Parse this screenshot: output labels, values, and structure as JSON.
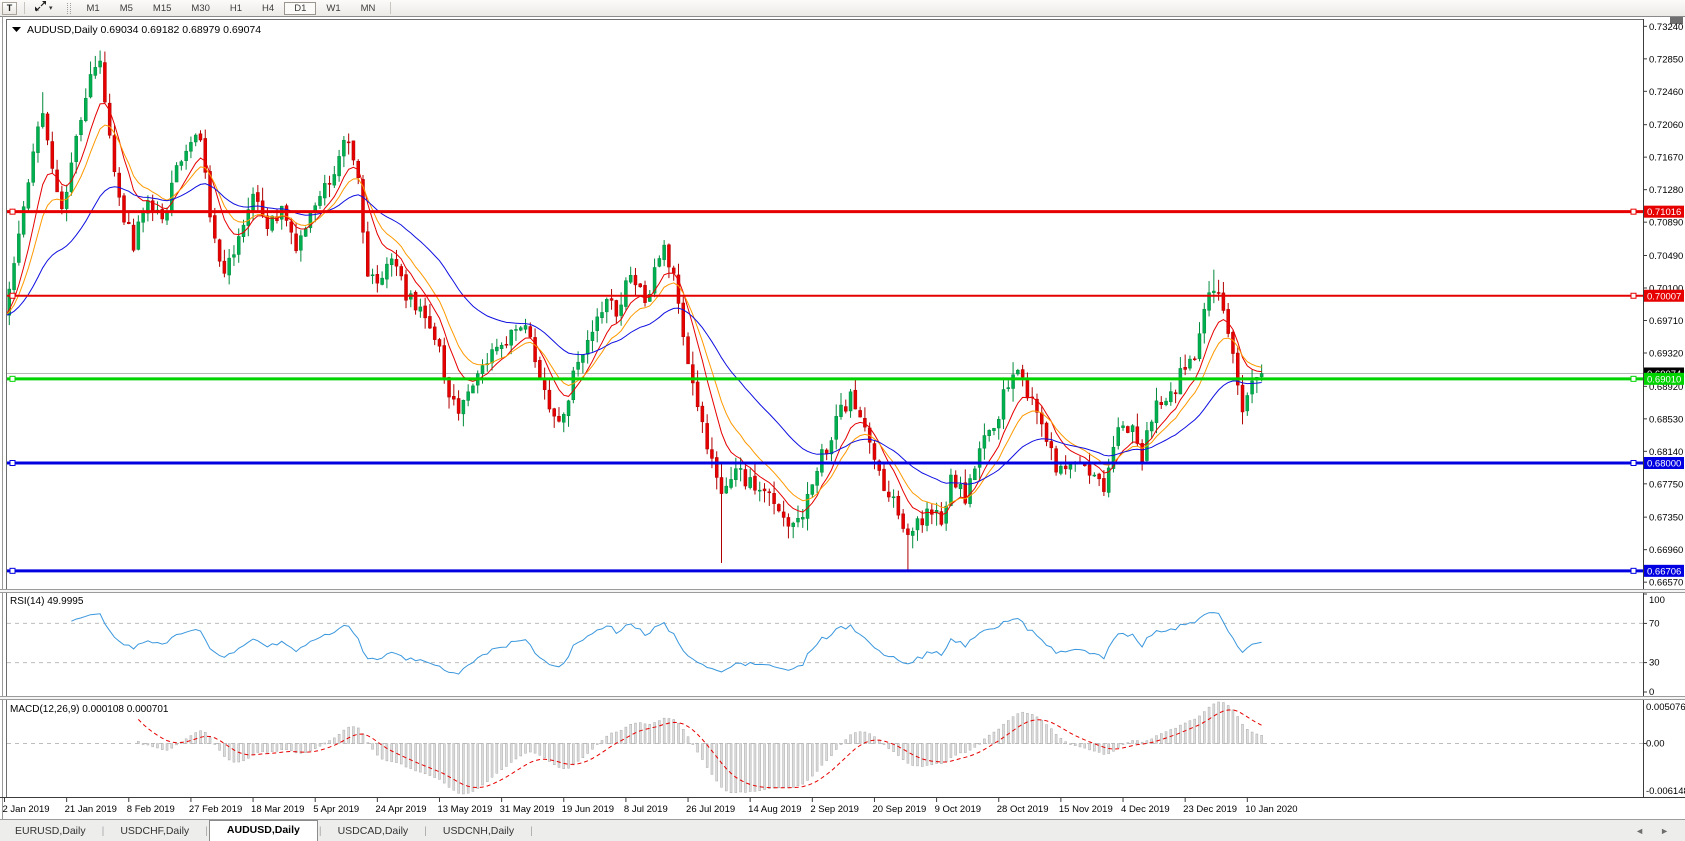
{
  "toolbar": {
    "text_tool": "T",
    "icons": [
      "text-tool-icon",
      "cursor-arrows-icon",
      "dropdown-caret-icon"
    ],
    "timeframes": [
      "M1",
      "M5",
      "M15",
      "M30",
      "H1",
      "H4",
      "D1",
      "W1",
      "MN"
    ],
    "active_timeframe": "D1"
  },
  "chart_header": {
    "symbol": "AUDUSD,Daily",
    "open": "0.69034",
    "high": "0.69182",
    "low": "0.68979",
    "close": "0.69074"
  },
  "price_axis": {
    "labels": [
      "0.73240",
      "0.72850",
      "0.72460",
      "0.72060",
      "0.71670",
      "0.71280",
      "0.70890",
      "0.70490",
      "0.70100",
      "0.69710",
      "0.69320",
      "0.68920",
      "0.68530",
      "0.68140",
      "0.67750",
      "0.67350",
      "0.66960",
      "0.66570"
    ],
    "current_price": {
      "value": 0.69074,
      "label": "0.69074",
      "box_color": "#000000",
      "text_color": "#ffffff",
      "line_color": "#b8b8b8"
    }
  },
  "levels": [
    {
      "price": 0.71016,
      "label": "0.71016",
      "color": "#e60000",
      "width": 3
    },
    {
      "price": 0.70007,
      "label": "0.70007",
      "color": "#e60000",
      "width": 2
    },
    {
      "price": 0.6901,
      "label": "0.69010",
      "color": "#00d400",
      "width": 3
    },
    {
      "price": 0.68,
      "label": "0.68000",
      "color": "#0000e0",
      "width": 3
    },
    {
      "price": 0.66706,
      "label": "0.66706",
      "color": "#0000e0",
      "width": 3
    }
  ],
  "rsi_panel": {
    "name": "RSI(14)",
    "value": "49.9995",
    "axis_labels": [
      "100",
      "70",
      "30",
      "0"
    ],
    "axis_values": [
      100,
      70,
      30,
      0
    ],
    "overbought": 70,
    "oversold": 30,
    "line_color": "#3a97dd"
  },
  "macd_panel": {
    "name": "MACD(12,26,9)",
    "value_main": "0.000108",
    "value_signal": "0.000701",
    "axis_top": "0.005076",
    "axis_zero": "0.00",
    "axis_bottom": "-0.006148",
    "histogram_fill": "#dcdcdc",
    "histogram_stroke": "#ababab",
    "signal_color": "#e60000"
  },
  "date_axis": {
    "labels": [
      "2 Jan 2019",
      "21 Jan 2019",
      "8 Feb 2019",
      "27 Feb 2019",
      "18 Mar 2019",
      "5 Apr 2019",
      "24 Apr 2019",
      "13 May 2019",
      "31 May 2019",
      "19 Jun 2019",
      "8 Jul 2019",
      "26 Jul 2019",
      "14 Aug 2019",
      "2 Sep 2019",
      "20 Sep 2019",
      "9 Oct 2019",
      "28 Oct 2019",
      "15 Nov 2019",
      "4 Dec 2019",
      "23 Dec 2019",
      "10 Jan 2020"
    ],
    "candles_per_label": 13
  },
  "bottom_tabs": {
    "items": [
      "EURUSD,Daily",
      "USDCHF,Daily",
      "AUDUSD,Daily",
      "USDCAD,Daily",
      "USDCNH,Daily"
    ],
    "active_index": 2,
    "arrows": [
      "tab-scroll-left-icon",
      "tab-scroll-right-icon"
    ]
  },
  "chart_data": {
    "type": "candlestick",
    "symbol": "AUDUSD",
    "timeframe": "Daily",
    "price_range": {
      "axis_top": 0.7324,
      "axis_bottom": 0.6657,
      "tick_step": 0.0039
    },
    "current_ohlc": {
      "open": 0.69034,
      "high": 0.69182,
      "low": 0.68979,
      "close": 0.69074
    },
    "candle_count": 264,
    "close_waypoints": [
      [
        0,
        0.6985
      ],
      [
        2,
        0.704
      ],
      [
        4,
        0.7105
      ],
      [
        6,
        0.718
      ],
      [
        8,
        0.723
      ],
      [
        10,
        0.715
      ],
      [
        12,
        0.711
      ],
      [
        14,
        0.716
      ],
      [
        16,
        0.722
      ],
      [
        18,
        0.726
      ],
      [
        20,
        0.729
      ],
      [
        21,
        0.724
      ],
      [
        23,
        0.715
      ],
      [
        25,
        0.7095
      ],
      [
        27,
        0.7065
      ],
      [
        30,
        0.7125
      ],
      [
        33,
        0.7085
      ],
      [
        36,
        0.7155
      ],
      [
        39,
        0.718
      ],
      [
        41,
        0.7195
      ],
      [
        43,
        0.7095
      ],
      [
        46,
        0.703
      ],
      [
        49,
        0.707
      ],
      [
        52,
        0.712
      ],
      [
        55,
        0.7085
      ],
      [
        58,
        0.7105
      ],
      [
        61,
        0.706
      ],
      [
        64,
        0.7095
      ],
      [
        67,
        0.7125
      ],
      [
        70,
        0.7165
      ],
      [
        72,
        0.719
      ],
      [
        74,
        0.7135
      ],
      [
        76,
        0.7025
      ],
      [
        78,
        0.701
      ],
      [
        81,
        0.7045
      ],
      [
        84,
        0.7005
      ],
      [
        87,
        0.699
      ],
      [
        89,
        0.696
      ],
      [
        91,
        0.6935
      ],
      [
        93,
        0.688
      ],
      [
        95,
        0.6862
      ],
      [
        97,
        0.6885
      ],
      [
        100,
        0.6915
      ],
      [
        104,
        0.6932
      ],
      [
        107,
        0.6968
      ],
      [
        110,
        0.6955
      ],
      [
        113,
        0.6885
      ],
      [
        116,
        0.6845
      ],
      [
        118,
        0.688
      ],
      [
        120,
        0.6925
      ],
      [
        123,
        0.6958
      ],
      [
        126,
        0.7005
      ],
      [
        128,
        0.6975
      ],
      [
        131,
        0.703
      ],
      [
        134,
        0.6992
      ],
      [
        138,
        0.7062
      ],
      [
        140,
        0.702
      ],
      [
        143,
        0.6925
      ],
      [
        146,
        0.685
      ],
      [
        148,
        0.68
      ],
      [
        150,
        0.676
      ],
      [
        153,
        0.6792
      ],
      [
        156,
        0.678
      ],
      [
        159,
        0.6768
      ],
      [
        162,
        0.6742
      ],
      [
        165,
        0.6722
      ],
      [
        168,
        0.6758
      ],
      [
        171,
        0.6805
      ],
      [
        174,
        0.6848
      ],
      [
        177,
        0.688
      ],
      [
        180,
        0.6845
      ],
      [
        183,
        0.6782
      ],
      [
        186,
        0.6752
      ],
      [
        189,
        0.6705
      ],
      [
        191,
        0.673
      ],
      [
        194,
        0.6742
      ],
      [
        196,
        0.6728
      ],
      [
        198,
        0.6782
      ],
      [
        201,
        0.6758
      ],
      [
        204,
        0.682
      ],
      [
        207,
        0.6848
      ],
      [
        210,
        0.6892
      ],
      [
        212,
        0.6922
      ],
      [
        214,
        0.688
      ],
      [
        217,
        0.6848
      ],
      [
        220,
        0.6788
      ],
      [
        222,
        0.68
      ],
      [
        224,
        0.6808
      ],
      [
        227,
        0.6788
      ],
      [
        230,
        0.6768
      ],
      [
        233,
        0.6838
      ],
      [
        235,
        0.6848
      ],
      [
        238,
        0.6812
      ],
      [
        241,
        0.6875
      ],
      [
        244,
        0.6885
      ],
      [
        246,
        0.6902
      ],
      [
        249,
        0.6928
      ],
      [
        251,
        0.6985
      ],
      [
        253,
        0.7018
      ],
      [
        255,
        0.6982
      ],
      [
        257,
        0.6928
      ],
      [
        259,
        0.6862
      ],
      [
        261,
        0.6898
      ],
      [
        263,
        0.6907
      ]
    ],
    "wick_overrides": [
      {
        "i": 8,
        "high": 0.7245
      },
      {
        "i": 20,
        "high": 0.7295
      },
      {
        "i": 150,
        "low": 0.668
      },
      {
        "i": 189,
        "low": 0.6672
      },
      {
        "i": 253,
        "high": 0.7032
      }
    ],
    "final_candle": {
      "open": 0.69034,
      "high": 0.69182,
      "low": 0.68979,
      "close": 0.69074
    },
    "candle_colors": {
      "up_fill": "#00b050",
      "up_stroke": "#008a3c",
      "down_fill": "#e60000",
      "down_stroke": "#b00000"
    },
    "moving_averages": [
      {
        "type": "EMA",
        "period": 8,
        "color": "#e60000"
      },
      {
        "type": "EMA",
        "period": 13,
        "color": "#ff9900"
      },
      {
        "type": "EMA",
        "period": 34,
        "color": "#0f0fe0"
      }
    ],
    "indicators": [
      {
        "name": "RSI",
        "period": 14,
        "value": 49.9995
      },
      {
        "name": "MACD",
        "fast": 12,
        "slow": 26,
        "signal": 9,
        "value": 0.000108,
        "signal_value": 0.000701
      }
    ],
    "synthesis": {
      "seed": 12,
      "close_noise": 0.0013,
      "wick_noise": 0.0016,
      "gap_noise": 0.0004
    }
  }
}
